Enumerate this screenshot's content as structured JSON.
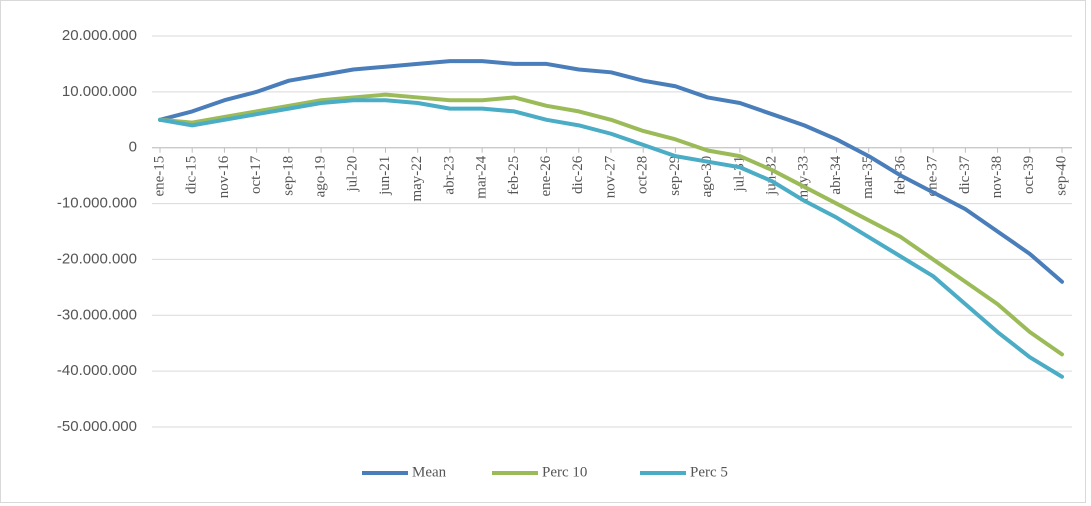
{
  "chart_data": {
    "type": "line",
    "categories": [
      "ene-15",
      "dic-15",
      "nov-16",
      "oct-17",
      "sep-18",
      "ago-19",
      "jul-20",
      "jun-21",
      "may-22",
      "abr-23",
      "mar-24",
      "feb-25",
      "ene-26",
      "dic-26",
      "nov-27",
      "oct-28",
      "sep-29",
      "ago-30",
      "jul-31",
      "jun-32",
      "may-33",
      "abr-34",
      "mar-35",
      "feb-36",
      "ene-37",
      "dic-37",
      "nov-38",
      "oct-39",
      "sep-40"
    ],
    "series": [
      {
        "name": "Mean",
        "color": "#4a7ebb",
        "values": [
          5000000,
          6500000,
          8500000,
          10000000,
          12000000,
          13000000,
          14000000,
          14500000,
          15000000,
          15500000,
          15500000,
          15000000,
          15000000,
          14000000,
          13500000,
          12000000,
          11000000,
          9000000,
          8000000,
          6000000,
          4000000,
          1500000,
          -1500000,
          -5000000,
          -8000000,
          -11000000,
          -15000000,
          -19000000,
          -24000000
        ]
      },
      {
        "name": "Perc 10",
        "color": "#9bbb59",
        "values": [
          5000000,
          4500000,
          5500000,
          6500000,
          7500000,
          8500000,
          9000000,
          9500000,
          9000000,
          8500000,
          8500000,
          9000000,
          7500000,
          6500000,
          5000000,
          3000000,
          1500000,
          -500000,
          -1500000,
          -4000000,
          -7000000,
          -10000000,
          -13000000,
          -16000000,
          -20000000,
          -24000000,
          -28000000,
          -33000000,
          -37000000
        ]
      },
      {
        "name": "Perc 5",
        "color": "#4bacc6",
        "values": [
          5000000,
          4000000,
          5000000,
          6000000,
          7000000,
          8000000,
          8500000,
          8500000,
          8000000,
          7000000,
          7000000,
          6500000,
          5000000,
          4000000,
          2500000,
          500000,
          -1500000,
          -2500000,
          -3500000,
          -6000000,
          -9500000,
          -12500000,
          -16000000,
          -19500000,
          -23000000,
          -28000000,
          -33000000,
          -37500000,
          -41000000
        ]
      }
    ],
    "ylim": [
      -50000000,
      20000000
    ],
    "yticks": [
      {
        "value": -50000000,
        "label": "-50.000.000"
      },
      {
        "value": -40000000,
        "label": "-40.000.000"
      },
      {
        "value": -30000000,
        "label": "-30.000.000"
      },
      {
        "value": -20000000,
        "label": "-20.000.000"
      },
      {
        "value": -10000000,
        "label": "-10.000.000"
      },
      0,
      {
        "value": 10000000,
        "label": "10.000.000"
      },
      {
        "value": 20000000,
        "label": "20.000.000"
      }
    ],
    "grid": true,
    "legend": "bottom"
  }
}
